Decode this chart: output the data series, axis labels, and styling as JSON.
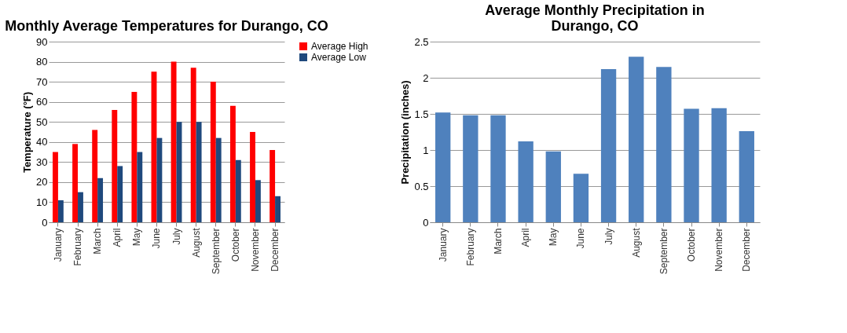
{
  "chart_data": [
    {
      "type": "bar",
      "title": "Monthly Average Temperatures for Durango, CO",
      "ylabel": "Temperature (°F)",
      "categories": [
        "January",
        "February",
        "March",
        "April",
        "May",
        "June",
        "July",
        "August",
        "September",
        "October",
        "November",
        "December"
      ],
      "series": [
        {
          "name": "Average High",
          "color": "#ff0000",
          "values": [
            35,
            39,
            46,
            56,
            65,
            75,
            80,
            77,
            70,
            58,
            45,
            36
          ]
        },
        {
          "name": "Average Low",
          "color": "#1f497d",
          "values": [
            11,
            15,
            22,
            28,
            35,
            42,
            50,
            50,
            42,
            31,
            21,
            13
          ]
        }
      ],
      "ylim": [
        0,
        90
      ],
      "yticks": [
        0,
        10,
        20,
        30,
        40,
        50,
        60,
        70,
        80,
        90
      ],
      "grid": "y",
      "legend": "right"
    },
    {
      "type": "bar",
      "title": "Average Monthly Precipitation in Durango, CO",
      "ylabel": "Precipitation (inches)",
      "categories": [
        "January",
        "February",
        "March",
        "April",
        "May",
        "June",
        "July",
        "August",
        "September",
        "October",
        "November",
        "December"
      ],
      "series": [
        {
          "color": "#4f81bd",
          "values": [
            1.52,
            1.48,
            1.48,
            1.12,
            0.98,
            0.67,
            2.12,
            2.29,
            2.15,
            1.57,
            1.58,
            1.26
          ]
        }
      ],
      "ylim": [
        0,
        2.5
      ],
      "yticks": [
        0,
        0.5,
        1,
        1.5,
        2,
        2.5
      ],
      "grid": "y"
    }
  ]
}
